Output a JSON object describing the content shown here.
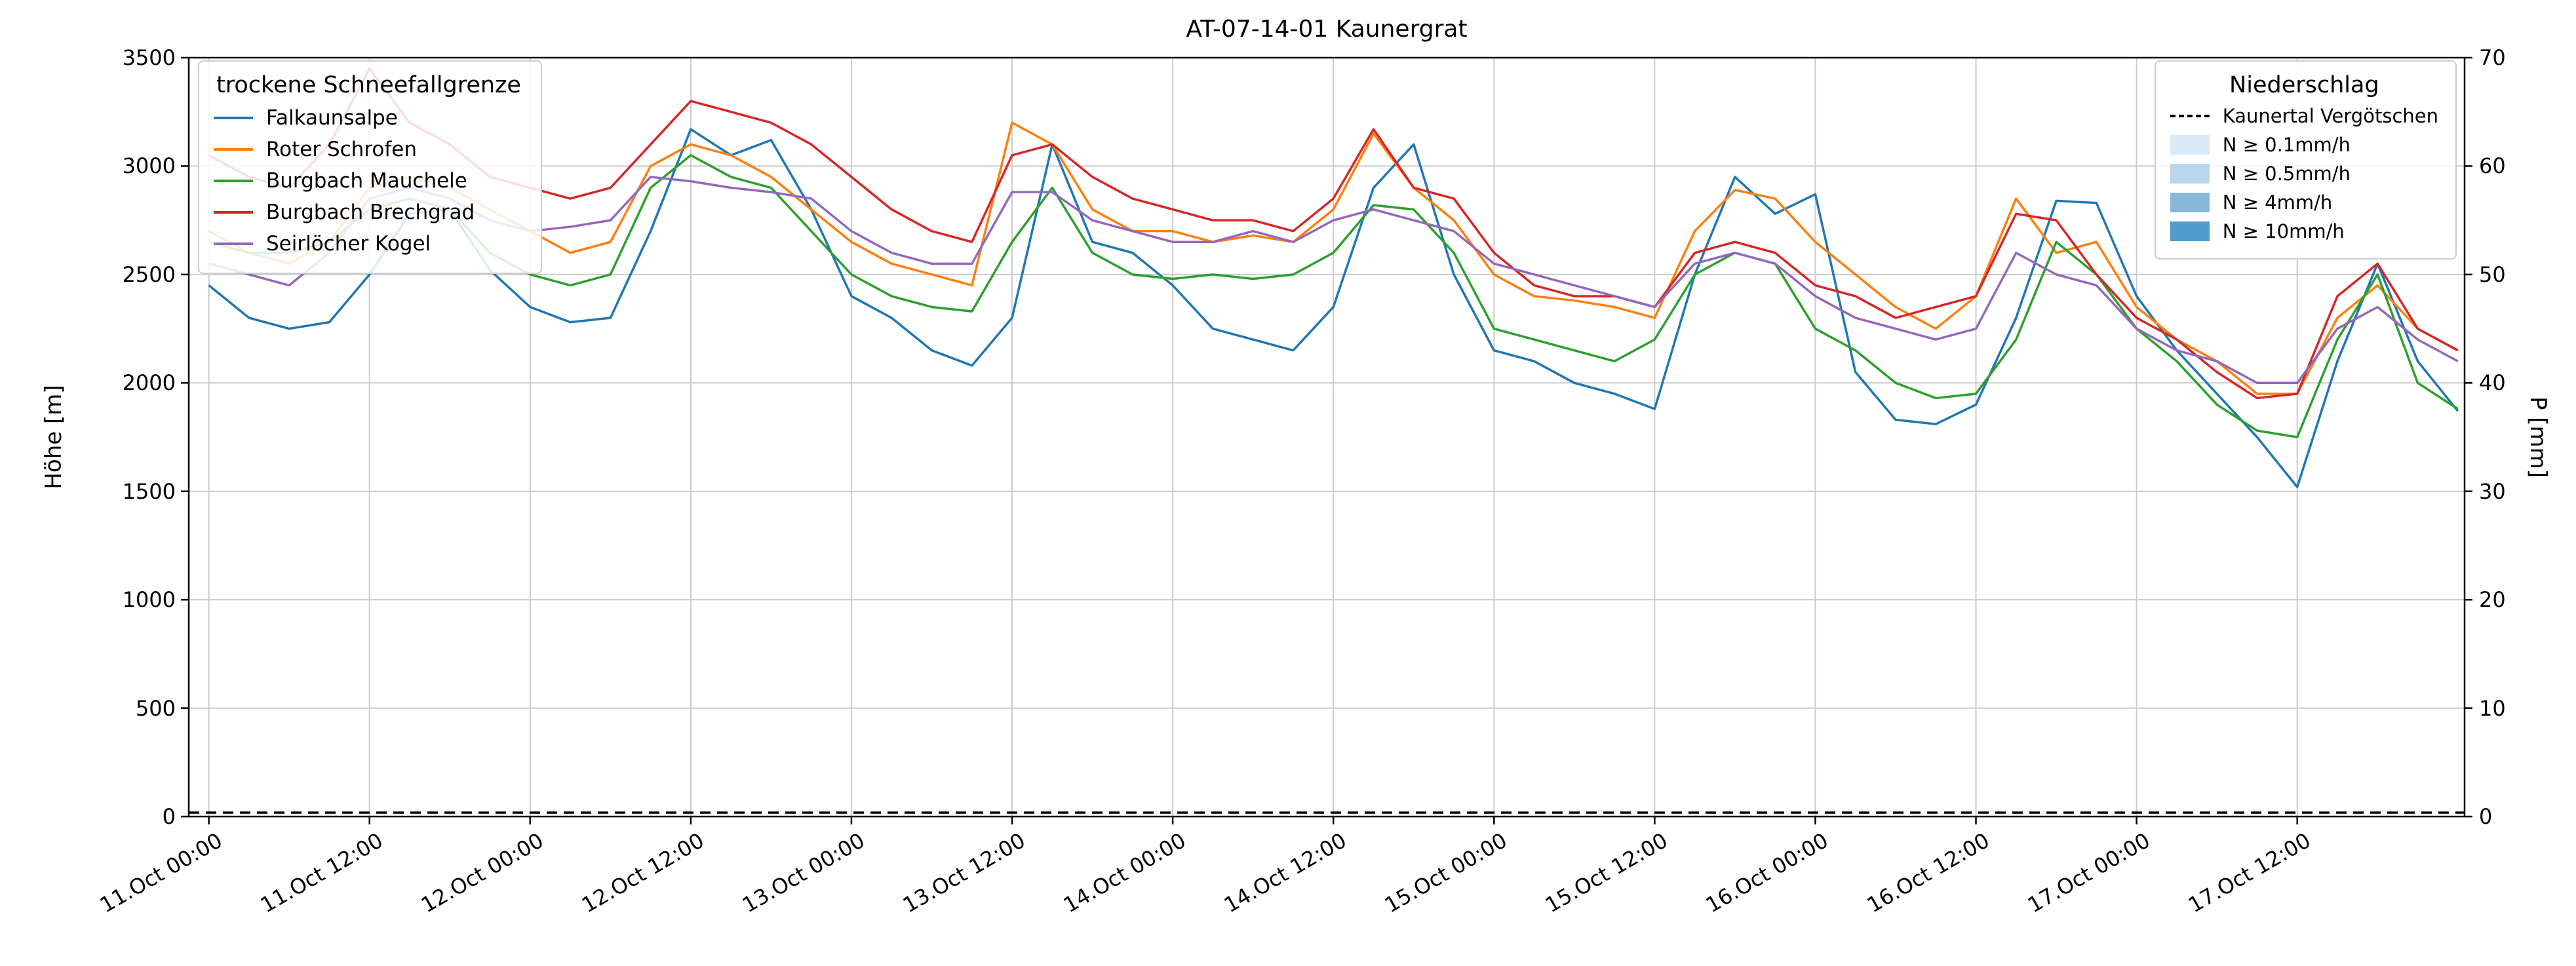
{
  "title": "AT-07-14-01 Kaunergrat",
  "axes": {
    "y_left_label": "Höhe [m]",
    "y_right_label": "P [mm]",
    "y_left_tick_values": [
      0,
      500,
      1000,
      1500,
      2000,
      2500,
      3000,
      3500
    ],
    "y_right_tick_values": [
      0,
      10,
      20,
      30,
      40,
      50,
      60,
      70
    ],
    "x_tick_hours": [
      0,
      12,
      24,
      36,
      48,
      60,
      72,
      84,
      96,
      108,
      120,
      132,
      144,
      156
    ],
    "x_tick_labels": [
      "11.Oct 00:00",
      "11.Oct 12:00",
      "12.Oct 00:00",
      "12.Oct 12:00",
      "13.Oct 00:00",
      "13.Oct 12:00",
      "14.Oct 00:00",
      "14.Oct 12:00",
      "15.Oct 00:00",
      "15.Oct 12:00",
      "16.Oct 00:00",
      "16.Oct 12:00",
      "17.Oct 00:00",
      "17.Oct 12:00"
    ]
  },
  "legend_snowline": {
    "title": "trockene Schneefallgrenze",
    "entries": [
      {
        "label": "Falkaunsalpe",
        "color": "#1f77b4"
      },
      {
        "label": "Roter Schrofen",
        "color": "#ff7f0e"
      },
      {
        "label": "Burgbach Mauchele",
        "color": "#2ca02c"
      },
      {
        "label": "Burgbach Brechgrad",
        "color": "#d62728"
      },
      {
        "label": "Seirlöcher Kogel",
        "color": "#9467bd"
      }
    ]
  },
  "legend_precip": {
    "title": "Niederschlag",
    "dashed_entry": "Kaunertal Vergötschen",
    "intensity_entries": [
      {
        "label": "N ≥ 0.1mm/h",
        "color": "#dbe9f6"
      },
      {
        "label": "N ≥ 0.5mm/h",
        "color": "#b9d6ea"
      },
      {
        "label": "N ≥ 4mm/h",
        "color": "#85b8da"
      },
      {
        "label": "N ≥ 10mm/h",
        "color": "#4f9bcb"
      }
    ]
  },
  "chart_data": {
    "type": "line",
    "title": "AT-07-14-01 Kaunergrat",
    "xlabel": "",
    "ylabel_left": "Höhe [m]",
    "ylabel_right": "P [mm]",
    "ylim_left": [
      0,
      3500
    ],
    "ylim_right": [
      0,
      70
    ],
    "grid": true,
    "x_unit": "hours since 11 Oct 00:00",
    "x_hours": [
      0,
      3,
      6,
      9,
      12,
      15,
      18,
      21,
      24,
      27,
      30,
      33,
      36,
      39,
      42,
      45,
      48,
      51,
      54,
      57,
      60,
      63,
      66,
      69,
      72,
      75,
      78,
      81,
      84,
      87,
      90,
      93,
      96,
      99,
      102,
      105,
      108,
      111,
      114,
      117,
      120,
      123,
      126,
      129,
      132,
      135,
      138,
      141,
      144,
      147,
      150,
      153,
      156,
      159,
      162,
      165,
      168
    ],
    "series": [
      {
        "name": "Falkaunsalpe",
        "color": "#1f77b4",
        "axis": "left",
        "values": [
          2450,
          2300,
          2250,
          2280,
          2500,
          2780,
          2800,
          2520,
          2350,
          2280,
          2300,
          2700,
          3170,
          3050,
          3120,
          2800,
          2400,
          2300,
          2150,
          2080,
          2300,
          3100,
          2650,
          2600,
          2450,
          2250,
          2200,
          2150,
          2350,
          2900,
          3100,
          2500,
          2150,
          2100,
          2000,
          1950,
          1880,
          2500,
          2950,
          2780,
          2870,
          2050,
          1830,
          1810,
          1900,
          2300,
          2840,
          2830,
          2400,
          2150,
          1950,
          1750,
          1520,
          2100,
          2550,
          2100,
          1870
        ]
      },
      {
        "name": "Roter Schrofen",
        "color": "#ff7f0e",
        "axis": "left",
        "values": [
          2700,
          2600,
          2550,
          2650,
          2900,
          2950,
          2900,
          2800,
          2700,
          2600,
          2650,
          3000,
          3100,
          3050,
          2950,
          2800,
          2650,
          2550,
          2500,
          2450,
          3200,
          3100,
          2800,
          2700,
          2700,
          2650,
          2680,
          2650,
          2800,
          3150,
          2900,
          2750,
          2500,
          2400,
          2380,
          2350,
          2300,
          2700,
          2890,
          2850,
          2650,
          2500,
          2350,
          2250,
          2400,
          2850,
          2600,
          2650,
          2350,
          2200,
          2100,
          1950,
          1950,
          2300,
          2450,
          2250,
          2150
        ]
      },
      {
        "name": "Burgbach Mauchele",
        "color": "#2ca02c",
        "axis": "left",
        "values": [
          2650,
          2600,
          2600,
          2650,
          2800,
          2850,
          2800,
          2600,
          2500,
          2450,
          2500,
          2900,
          3050,
          2950,
          2900,
          2700,
          2500,
          2400,
          2350,
          2330,
          2650,
          2900,
          2600,
          2500,
          2480,
          2500,
          2480,
          2500,
          2600,
          2820,
          2800,
          2600,
          2250,
          2200,
          2150,
          2100,
          2200,
          2500,
          2600,
          2550,
          2250,
          2150,
          2000,
          1930,
          1950,
          2200,
          2650,
          2500,
          2250,
          2100,
          1900,
          1780,
          1750,
          2200,
          2500,
          2000,
          1880
        ]
      },
      {
        "name": "Burgbach Brechgrad",
        "color": "#d62728",
        "axis": "left",
        "values": [
          3050,
          2950,
          2900,
          3100,
          3450,
          3200,
          3100,
          2950,
          2900,
          2850,
          2900,
          3100,
          3300,
          3250,
          3200,
          3100,
          2950,
          2800,
          2700,
          2650,
          3050,
          3100,
          2950,
          2850,
          2800,
          2750,
          2750,
          2700,
          2850,
          3170,
          2900,
          2850,
          2600,
          2450,
          2400,
          2400,
          2350,
          2600,
          2650,
          2600,
          2450,
          2400,
          2300,
          2350,
          2400,
          2780,
          2750,
          2500,
          2300,
          2200,
          2050,
          1930,
          1950,
          2400,
          2550,
          2250,
          2150
        ]
      },
      {
        "name": "Seirlöcher Kogel",
        "color": "#9467bd",
        "axis": "left",
        "values": [
          2550,
          2500,
          2450,
          2600,
          2850,
          2900,
          2850,
          2750,
          2700,
          2720,
          2750,
          2950,
          2930,
          2900,
          2880,
          2850,
          2700,
          2600,
          2550,
          2550,
          2880,
          2880,
          2750,
          2700,
          2650,
          2650,
          2700,
          2650,
          2750,
          2800,
          2750,
          2700,
          2550,
          2500,
          2450,
          2400,
          2350,
          2550,
          2600,
          2550,
          2400,
          2300,
          2250,
          2200,
          2250,
          2600,
          2500,
          2450,
          2250,
          2150,
          2100,
          2000,
          2000,
          2250,
          2350,
          2200,
          2100
        ]
      }
    ],
    "precip_line": {
      "name": "Kaunertal Vergötschen",
      "axis": "right",
      "style": "dashed",
      "color": "#000000",
      "value_mm": 0,
      "note": "flat dashed line at ~0 mm along entire x range"
    },
    "precip_intensity_bands": [],
    "legend_positions": {
      "snowline": "upper left",
      "precip": "upper right"
    }
  }
}
